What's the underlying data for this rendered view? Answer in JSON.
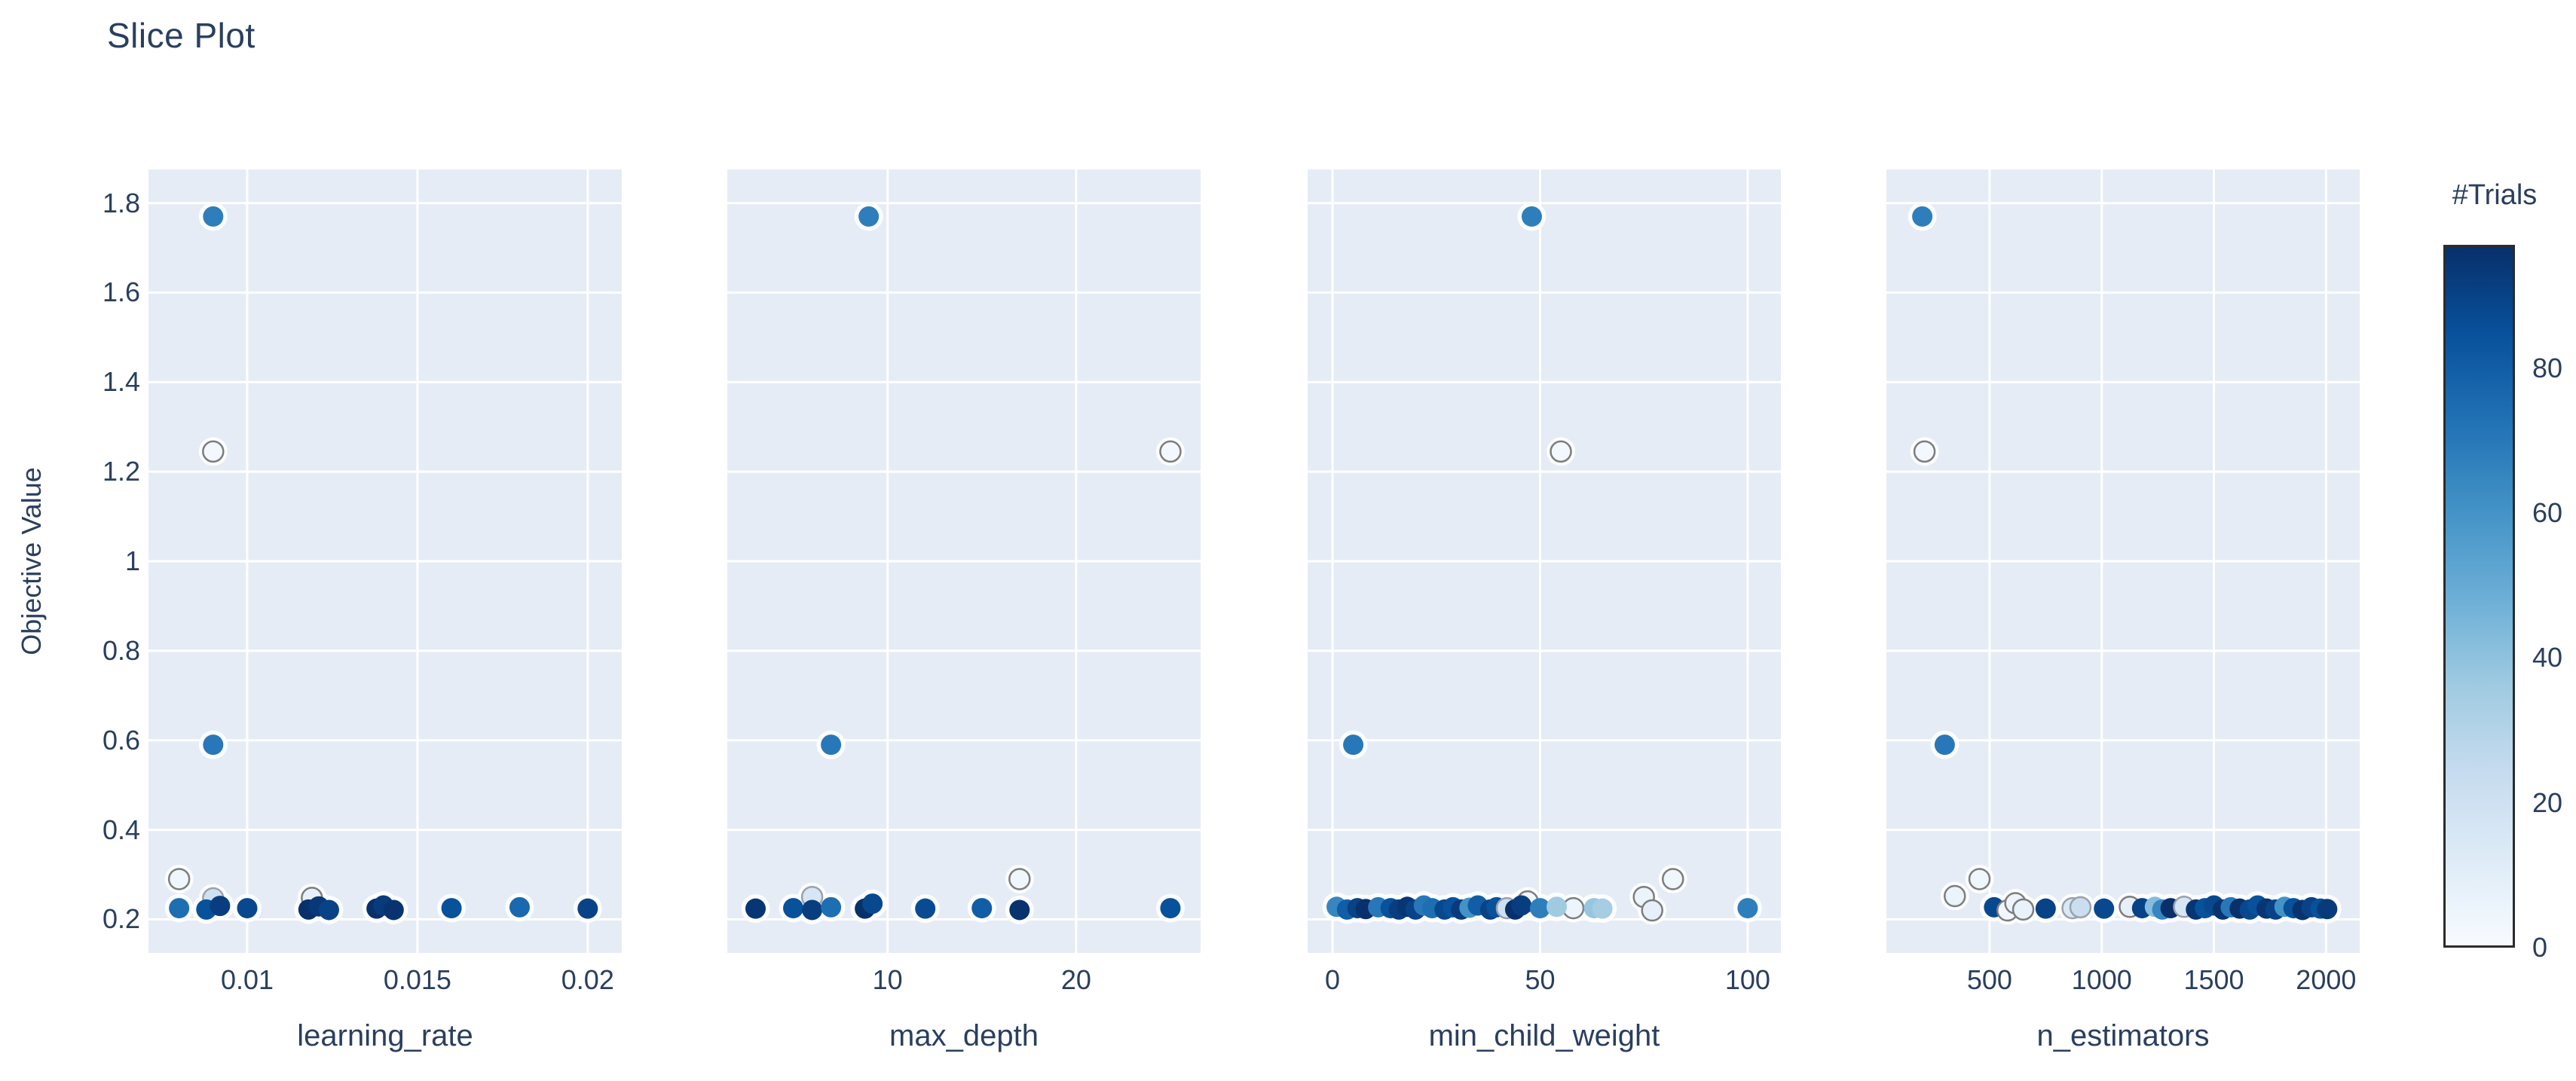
{
  "title": "Slice Plot",
  "ylabel": "Objective Value",
  "colors": {
    "plot_bg": "#e6ecf5",
    "grid": "#ffffff",
    "text": "#2a3f5f",
    "marker_halo": "#ffffff",
    "light_marker_ring": "#7d7d7d"
  },
  "colorbar": {
    "title": "#Trials",
    "min": 0,
    "max": 97,
    "ticks": [
      0,
      20,
      40,
      60,
      80
    ],
    "tick_labels": [
      "0",
      "20",
      "40",
      "60",
      "80"
    ],
    "color_low": "#f7fbff",
    "color_high": "#08306b",
    "colormap_stops": [
      [
        0.0,
        [
          247,
          251,
          255
        ]
      ],
      [
        0.125,
        [
          222,
          235,
          247
        ]
      ],
      [
        0.25,
        [
          198,
          219,
          239
        ]
      ],
      [
        0.375,
        [
          158,
          202,
          225
        ]
      ],
      [
        0.5,
        [
          107,
          174,
          214
        ]
      ],
      [
        0.625,
        [
          66,
          146,
          198
        ]
      ],
      [
        0.75,
        [
          33,
          113,
          181
        ]
      ],
      [
        0.875,
        [
          8,
          81,
          156
        ]
      ],
      [
        1.0,
        [
          8,
          48,
          107
        ]
      ]
    ]
  },
  "ylim": [
    0.125,
    1.875
  ],
  "yticks": {
    "values": [
      0.2,
      0.4,
      0.6,
      0.8,
      1.0,
      1.2,
      1.4,
      1.6,
      1.8
    ],
    "labels": [
      "0.2",
      "0.4",
      "0.6",
      "0.8",
      "1",
      "1.2",
      "1.4",
      "1.6",
      "1.8"
    ]
  },
  "point_format": "[param_value, objective_value, trial_number]",
  "chart_data": [
    {
      "type": "scatter",
      "xlabel": "learning_rate",
      "xlim": [
        0.0071,
        0.021
      ],
      "xticks": [
        0.01,
        0.015,
        0.02
      ],
      "xtick_labels": [
        "0.01",
        "0.015",
        "0.02"
      ],
      "points": [
        [
          0.009,
          1.77,
          68
        ],
        [
          0.009,
          1.245,
          2
        ],
        [
          0.009,
          0.59,
          70
        ],
        [
          0.008,
          0.29,
          4
        ],
        [
          0.009,
          0.247,
          20
        ],
        [
          0.008,
          0.225,
          74
        ],
        [
          0.0088,
          0.222,
          85
        ],
        [
          0.0092,
          0.23,
          92
        ],
        [
          0.01,
          0.225,
          88
        ],
        [
          0.0119,
          0.248,
          8
        ],
        [
          0.0118,
          0.222,
          97
        ],
        [
          0.0121,
          0.229,
          94
        ],
        [
          0.0124,
          0.221,
          90
        ],
        [
          0.0138,
          0.224,
          97
        ],
        [
          0.014,
          0.231,
          93
        ],
        [
          0.0143,
          0.221,
          96
        ],
        [
          0.016,
          0.225,
          85
        ],
        [
          0.018,
          0.227,
          76
        ],
        [
          0.02,
          0.224,
          90
        ]
      ]
    },
    {
      "type": "scatter",
      "xlabel": "max_depth",
      "xlim": [
        1.5,
        26.6
      ],
      "xticks": [
        10,
        20
      ],
      "xtick_labels": [
        "10",
        "20"
      ],
      "points": [
        [
          9,
          1.77,
          68
        ],
        [
          25,
          1.245,
          2
        ],
        [
          7,
          0.59,
          70
        ],
        [
          17,
          0.29,
          4
        ],
        [
          6,
          0.25,
          16
        ],
        [
          3,
          0.224,
          95
        ],
        [
          5,
          0.225,
          85
        ],
        [
          6,
          0.221,
          92
        ],
        [
          7,
          0.227,
          74
        ],
        [
          8.8,
          0.224,
          97
        ],
        [
          9.2,
          0.235,
          88
        ],
        [
          12,
          0.224,
          87
        ],
        [
          15,
          0.225,
          80
        ],
        [
          17,
          0.221,
          96
        ],
        [
          25,
          0.225,
          85
        ]
      ]
    },
    {
      "type": "scatter",
      "xlabel": "min_child_weight",
      "xlim": [
        -6,
        108
      ],
      "xticks": [
        0,
        50,
        100
      ],
      "xtick_labels": [
        "0",
        "50",
        "100"
      ],
      "points": [
        [
          48,
          1.77,
          68
        ],
        [
          55,
          1.245,
          2
        ],
        [
          5,
          0.59,
          70
        ],
        [
          82,
          0.29,
          4
        ],
        [
          75,
          0.25,
          6
        ],
        [
          77,
          0.22,
          8
        ],
        [
          47,
          0.24,
          3
        ],
        [
          58,
          0.225,
          5
        ],
        [
          1,
          0.228,
          65
        ],
        [
          3.5,
          0.222,
          80
        ],
        [
          6,
          0.225,
          90
        ],
        [
          8,
          0.223,
          97
        ],
        [
          11,
          0.227,
          70
        ],
        [
          14,
          0.225,
          85
        ],
        [
          16,
          0.222,
          92
        ],
        [
          18,
          0.228,
          95
        ],
        [
          20,
          0.222,
          90
        ],
        [
          22,
          0.231,
          70
        ],
        [
          24,
          0.225,
          74
        ],
        [
          27,
          0.222,
          88
        ],
        [
          29,
          0.227,
          85
        ],
        [
          31,
          0.222,
          93
        ],
        [
          33,
          0.226,
          60
        ],
        [
          35,
          0.231,
          80
        ],
        [
          38,
          0.222,
          90
        ],
        [
          39.5,
          0.227,
          85
        ],
        [
          42,
          0.225,
          20
        ],
        [
          44,
          0.222,
          97
        ],
        [
          45.5,
          0.231,
          92
        ],
        [
          50,
          0.225,
          68
        ],
        [
          54,
          0.228,
          36
        ],
        [
          63,
          0.225,
          38
        ],
        [
          65,
          0.224,
          34
        ],
        [
          100,
          0.225,
          68
        ]
      ]
    },
    {
      "type": "scatter",
      "xlabel": "n_estimators",
      "xlim": [
        40,
        2150
      ],
      "xticks": [
        500,
        1000,
        1500,
        2000
      ],
      "xtick_labels": [
        "500",
        "1000",
        "1500",
        "2000"
      ],
      "points": [
        [
          200,
          1.77,
          68
        ],
        [
          210,
          1.245,
          2
        ],
        [
          300,
          0.59,
          70
        ],
        [
          455,
          0.29,
          4
        ],
        [
          345,
          0.252,
          6
        ],
        [
          520,
          0.227,
          88
        ],
        [
          580,
          0.22,
          3
        ],
        [
          615,
          0.236,
          5
        ],
        [
          650,
          0.222,
          7
        ],
        [
          750,
          0.224,
          90
        ],
        [
          870,
          0.225,
          14
        ],
        [
          905,
          0.227,
          22
        ],
        [
          1010,
          0.224,
          88
        ],
        [
          1125,
          0.228,
          8
        ],
        [
          1180,
          0.225,
          90
        ],
        [
          1237,
          0.228,
          42
        ],
        [
          1270,
          0.222,
          65
        ],
        [
          1307,
          0.225,
          97
        ],
        [
          1367,
          0.228,
          16
        ],
        [
          1420,
          0.222,
          95
        ],
        [
          1460,
          0.225,
          85
        ],
        [
          1500,
          0.231,
          88
        ],
        [
          1540,
          0.222,
          96
        ],
        [
          1575,
          0.227,
          70
        ],
        [
          1615,
          0.224,
          97
        ],
        [
          1660,
          0.222,
          88
        ],
        [
          1695,
          0.231,
          85
        ],
        [
          1735,
          0.224,
          95
        ],
        [
          1775,
          0.222,
          90
        ],
        [
          1815,
          0.228,
          60
        ],
        [
          1855,
          0.225,
          85
        ],
        [
          1895,
          0.221,
          96
        ],
        [
          1935,
          0.227,
          90
        ],
        [
          1975,
          0.224,
          85
        ],
        [
          2005,
          0.223,
          93
        ]
      ]
    }
  ]
}
